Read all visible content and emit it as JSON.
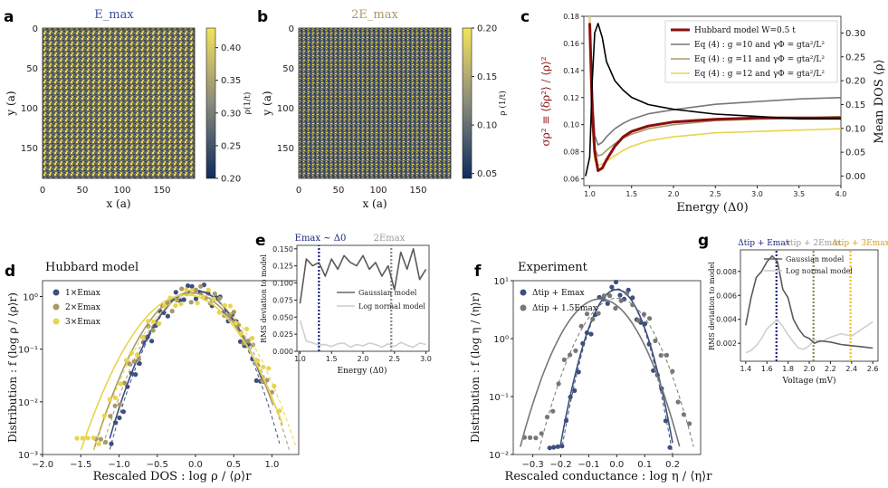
{
  "colors": {
    "navy": "#3d4f7c",
    "navy_dark": "#1a237e",
    "olive": "#b09a5a",
    "yellow": "#e8d44d",
    "tan": "#a89968",
    "darkred": "#8b0d0d",
    "gray": "#777777",
    "black": "#111111",
    "map_low": "#1a3a6b",
    "map_high": "#f2e35a"
  },
  "chart_data": [
    {
      "id": "a",
      "panel_label": "a",
      "type": "heatmap",
      "title": "E_max",
      "xlabel": "x (a)",
      "ylabel": "y (a)",
      "cbar_label": "ρ(1/t)",
      "xticks": [
        "0",
        "50",
        "100",
        "150"
      ],
      "yticks": [
        "0",
        "50",
        "100",
        "150"
      ],
      "cbar_ticks": [
        "0.20",
        "0.25",
        "0.30",
        "0.35",
        "0.40"
      ],
      "cbar_range": [
        0.2,
        0.43
      ]
    },
    {
      "id": "b",
      "panel_label": "b",
      "type": "heatmap",
      "title": "2E_max",
      "xlabel": "x (a)",
      "ylabel": "y (a)",
      "cbar_label": "ρ (1/t)",
      "xticks": [
        "0",
        "50",
        "100",
        "150"
      ],
      "yticks": [
        "0",
        "50",
        "100",
        "150"
      ],
      "cbar_ticks": [
        "0.05",
        "0.10",
        "0.15",
        "0.20"
      ],
      "cbar_range": [
        0.045,
        0.2
      ]
    },
    {
      "id": "c",
      "panel_label": "c",
      "type": "line",
      "xlabel": "Energy (Δ0)",
      "ylabel_left": "σρ² ≡ ⟨δρ²⟩ / ⟨ρ⟩²",
      "ylabel_right": "Mean DOS ⟨ρ⟩",
      "xlim": [
        0.93,
        4.0
      ],
      "ylim_left": [
        0.055,
        0.18
      ],
      "ylim_right": [
        -0.02,
        0.335
      ],
      "xticks": [
        "1.0",
        "1.5",
        "2.0",
        "2.5",
        "3.0",
        "3.5",
        "4.0"
      ],
      "yticks_left": [
        "0.06",
        "0.08",
        "0.10",
        "0.12",
        "0.14",
        "0.16",
        "0.18"
      ],
      "yticks_right": [
        "0.00",
        "0.05",
        "0.10",
        "0.15",
        "0.20",
        "0.25",
        "0.30"
      ],
      "legend": [
        "Hubbard model W=0.5 t",
        "Eq (4) : g =10 and γΦ = gta²/L²",
        "Eq (4) : g =11 and γΦ = gta²/L²",
        "Eq (4) : g =12 and γΦ = gta²/L²"
      ],
      "series": [
        {
          "name": "Hubbard model W=0.5 t",
          "axis": "left",
          "x": [
            1.0,
            1.03,
            1.06,
            1.1,
            1.15,
            1.2,
            1.3,
            1.4,
            1.5,
            1.7,
            2.0,
            2.5,
            3.0,
            3.5,
            4.0
          ],
          "y": [
            0.175,
            0.11,
            0.08,
            0.066,
            0.068,
            0.074,
            0.084,
            0.091,
            0.095,
            0.099,
            0.102,
            0.104,
            0.105,
            0.105,
            0.105
          ]
        },
        {
          "name": "g = 10",
          "axis": "left",
          "x": [
            1.0,
            1.03,
            1.06,
            1.1,
            1.15,
            1.2,
            1.3,
            1.4,
            1.5,
            1.7,
            2.0,
            2.5,
            3.0,
            3.5,
            4.0
          ],
          "y": [
            0.18,
            0.125,
            0.092,
            0.085,
            0.087,
            0.091,
            0.097,
            0.101,
            0.104,
            0.108,
            0.111,
            0.115,
            0.117,
            0.119,
            0.12
          ]
        },
        {
          "name": "g = 11",
          "axis": "left",
          "x": [
            1.0,
            1.03,
            1.06,
            1.1,
            1.15,
            1.2,
            1.3,
            1.4,
            1.5,
            1.7,
            2.0,
            2.5,
            3.0,
            3.5,
            4.0
          ],
          "y": [
            0.18,
            0.11,
            0.082,
            0.077,
            0.078,
            0.081,
            0.086,
            0.09,
            0.093,
            0.097,
            0.1,
            0.103,
            0.104,
            0.105,
            0.106
          ]
        },
        {
          "name": "g = 12",
          "axis": "left",
          "x": [
            1.0,
            1.03,
            1.06,
            1.1,
            1.15,
            1.2,
            1.3,
            1.4,
            1.5,
            1.7,
            2.0,
            2.5,
            3.0,
            3.5,
            4.0
          ],
          "y": [
            0.18,
            0.1,
            0.074,
            0.07,
            0.071,
            0.073,
            0.077,
            0.081,
            0.084,
            0.088,
            0.091,
            0.094,
            0.095,
            0.096,
            0.097
          ]
        },
        {
          "name": "Mean DOS",
          "axis": "right",
          "x": [
            0.95,
            1.0,
            1.03,
            1.06,
            1.1,
            1.15,
            1.2,
            1.3,
            1.4,
            1.5,
            1.7,
            2.0,
            2.5,
            3.0,
            3.5,
            4.0
          ],
          "y": [
            0.0,
            0.04,
            0.2,
            0.3,
            0.32,
            0.29,
            0.24,
            0.2,
            0.18,
            0.165,
            0.15,
            0.14,
            0.13,
            0.125,
            0.12,
            0.12
          ]
        }
      ]
    },
    {
      "id": "d",
      "panel_label": "d",
      "type": "scatter",
      "title": "Hubbard model",
      "xlabel": "Rescaled DOS : log ρ / ⟨ρ⟩r",
      "ylabel": "Distribution : f (log ρ / ⟨ρ⟩r)",
      "xlim": [
        -2.0,
        1.35
      ],
      "ylim_log": [
        0.001,
        2.0
      ],
      "xticks": [
        "−2.0",
        "−1.5",
        "−1.0",
        "−0.5",
        "0.0",
        "0.5",
        "1.0"
      ],
      "yticks": [
        "10⁰",
        "10⁻¹",
        "10⁻²",
        "10⁻³"
      ],
      "legend": [
        "1×Emax",
        "2×Emax",
        "3×Emax"
      ],
      "series": [
        {
          "name": "1×Emax",
          "sigma": 0.3,
          "xmin": -1.1,
          "xmax": 0.85
        },
        {
          "name": "2×Emax",
          "sigma": 0.33,
          "xmin": -1.3,
          "xmax": 1.0
        },
        {
          "name": "3×Emax",
          "sigma": 0.36,
          "xmin": -1.55,
          "xmax": 1.1
        }
      ]
    },
    {
      "id": "e",
      "panel_label": "e",
      "type": "line",
      "xlabel": "Energy (Δ0)",
      "ylabel": "RMS deviation to model",
      "xlim": [
        0.95,
        3.05
      ],
      "ylim": [
        0,
        0.155
      ],
      "xticks": [
        "1.0",
        "1.5",
        "2.0",
        "2.5",
        "3.0"
      ],
      "yticks": [
        "0.000",
        "0.025",
        "0.050",
        "0.075",
        "0.100",
        "0.125",
        "0.150"
      ],
      "legend": [
        "Gaussian model",
        "Log normal model"
      ],
      "vlines": [
        {
          "x": 1.3,
          "label": "Emax ~ Δ0"
        },
        {
          "x": 2.45,
          "label": "2Emax"
        }
      ],
      "series": [
        {
          "name": "Gaussian model",
          "x": [
            1.0,
            1.1,
            1.2,
            1.3,
            1.4,
            1.5,
            1.6,
            1.7,
            1.8,
            1.9,
            2.0,
            2.1,
            2.2,
            2.3,
            2.4,
            2.5,
            2.6,
            2.7,
            2.8,
            2.9,
            3.0
          ],
          "y": [
            0.07,
            0.135,
            0.125,
            0.13,
            0.11,
            0.135,
            0.12,
            0.14,
            0.13,
            0.125,
            0.14,
            0.12,
            0.13,
            0.11,
            0.125,
            0.09,
            0.145,
            0.12,
            0.15,
            0.105,
            0.12
          ]
        },
        {
          "name": "Log normal model",
          "x": [
            1.0,
            1.1,
            1.2,
            1.3,
            1.4,
            1.5,
            1.6,
            1.7,
            1.8,
            1.9,
            2.0,
            2.1,
            2.2,
            2.3,
            2.4,
            2.5,
            2.6,
            2.7,
            2.8,
            2.9,
            3.0
          ],
          "y": [
            0.045,
            0.015,
            0.012,
            0.009,
            0.01,
            0.007,
            0.011,
            0.012,
            0.006,
            0.01,
            0.008,
            0.012,
            0.01,
            0.006,
            0.011,
            0.007,
            0.013,
            0.009,
            0.006,
            0.012,
            0.01
          ]
        }
      ]
    },
    {
      "id": "f",
      "panel_label": "f",
      "type": "scatter",
      "title": "Experiment",
      "xlabel": "Rescaled conductance : log η / ⟨η⟩r",
      "ylabel": "Distribution : f (log η / ⟨η⟩r)",
      "xlim": [
        -0.37,
        0.3
      ],
      "ylim_log": [
        0.01,
        10
      ],
      "xticks": [
        "−0.3",
        "−0.2",
        "−0.1",
        "0.0",
        "0.1",
        "0.2"
      ],
      "yticks": [
        "10¹",
        "10⁰",
        "10⁻¹",
        "10⁻²"
      ],
      "legend": [
        "Δtip + Emax",
        "Δtip + 1.5Emax"
      ],
      "series": [
        {
          "name": "Δtip + Emax",
          "sigma": 0.055,
          "xmin": -0.24,
          "xmax": 0.19
        },
        {
          "name": "Δtip + 1.5Emax",
          "sigma": 0.08,
          "xmin": -0.33,
          "xmax": 0.26
        }
      ]
    },
    {
      "id": "g",
      "panel_label": "g",
      "type": "line",
      "xlabel": "Voltage (mV)",
      "ylabel": "RMS deviation to model",
      "xlim": [
        1.35,
        2.65
      ],
      "ylim": [
        0.0005,
        0.0098
      ],
      "xticks": [
        "1.4",
        "1.6",
        "1.8",
        "2.0",
        "2.2",
        "2.4",
        "2.6"
      ],
      "yticks": [
        "0.002",
        "0.004",
        "0.006",
        "0.008"
      ],
      "legend": [
        "Gaussian model",
        "Log normal model"
      ],
      "vlines": [
        {
          "x": 1.69,
          "label": "Δtip + Emax"
        },
        {
          "x": 2.04,
          "label": "Δtip + 2Emax"
        },
        {
          "x": 2.39,
          "label": "Δtip + 3Emax"
        }
      ],
      "series": [
        {
          "name": "Gaussian model",
          "x": [
            1.4,
            1.45,
            1.5,
            1.55,
            1.6,
            1.65,
            1.7,
            1.75,
            1.8,
            1.85,
            1.9,
            1.95,
            2.0,
            2.05,
            2.1,
            2.2,
            2.3,
            2.4,
            2.5,
            2.6
          ],
          "y": [
            0.0035,
            0.0058,
            0.0075,
            0.008,
            0.0088,
            0.0093,
            0.0088,
            0.0065,
            0.0058,
            0.004,
            0.0032,
            0.0026,
            0.0024,
            0.002,
            0.0022,
            0.0021,
            0.0019,
            0.0018,
            0.0017,
            0.0016
          ]
        },
        {
          "name": "Log normal model",
          "x": [
            1.4,
            1.45,
            1.5,
            1.55,
            1.6,
            1.65,
            1.7,
            1.75,
            1.8,
            1.85,
            1.9,
            1.95,
            2.0,
            2.05,
            2.1,
            2.2,
            2.3,
            2.4,
            2.5,
            2.6
          ],
          "y": [
            0.0012,
            0.0014,
            0.0018,
            0.0024,
            0.0032,
            0.0036,
            0.004,
            0.0034,
            0.0027,
            0.0021,
            0.0016,
            0.0015,
            0.0018,
            0.0023,
            0.0021,
            0.0025,
            0.0028,
            0.0026,
            0.0032,
            0.0038
          ]
        }
      ]
    }
  ]
}
